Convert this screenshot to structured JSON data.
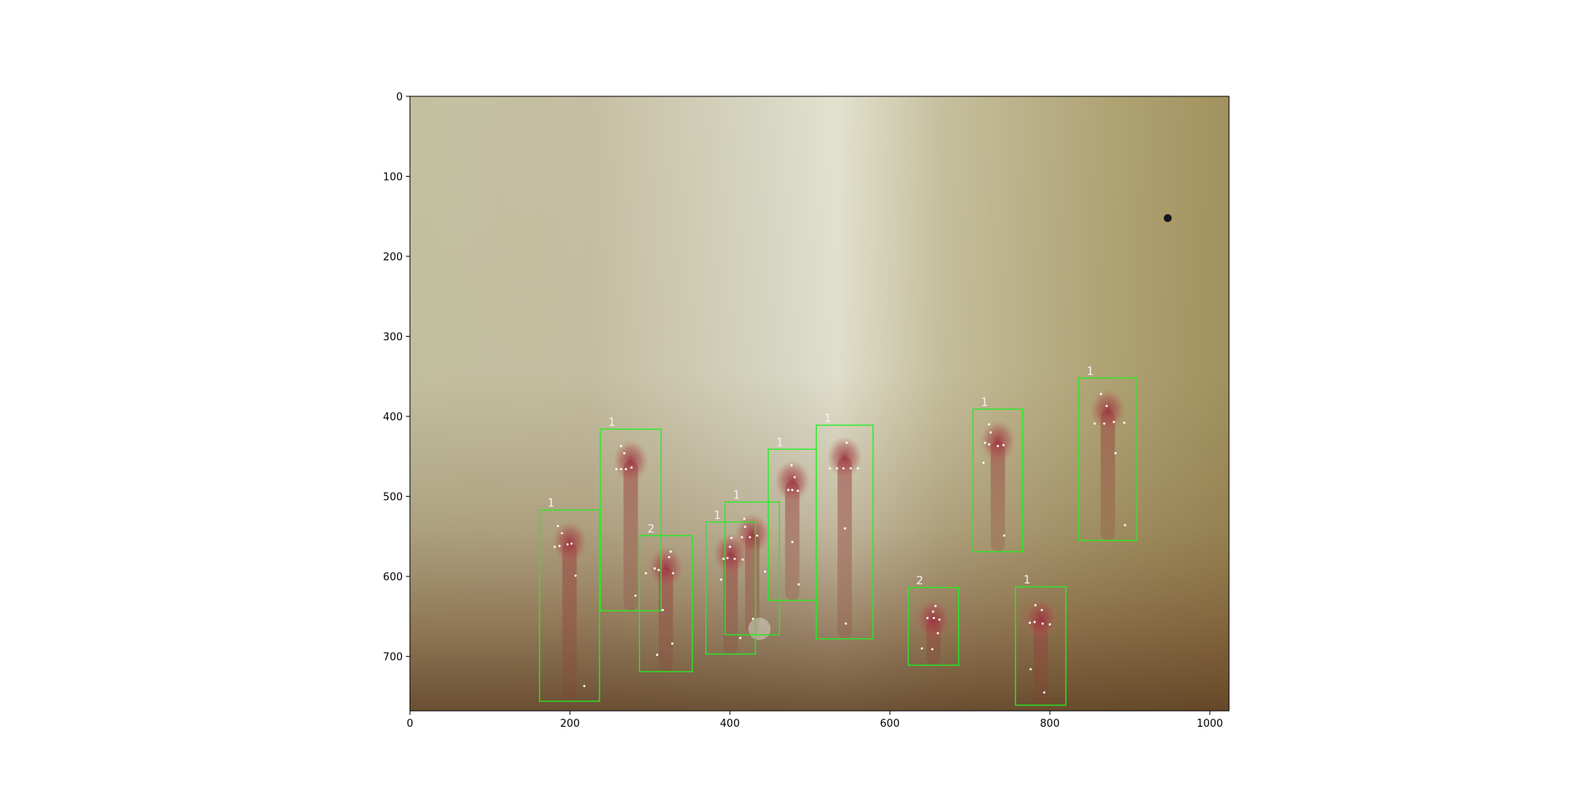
{
  "chart_data": {
    "type": "image-annotation",
    "title": "",
    "xlabel": "",
    "ylabel": "",
    "xlim": [
      0,
      1024
    ],
    "ylim": [
      768,
      0
    ],
    "x_ticks": [
      0,
      200,
      400,
      600,
      800,
      1000
    ],
    "y_ticks": [
      0,
      100,
      200,
      300,
      400,
      500,
      600,
      700
    ],
    "grid": false,
    "legend": "none",
    "colors": {
      "box": "#22ee22",
      "label": "#f4f4f4",
      "point": "#ffffff",
      "axis": "#000000"
    },
    "boxes": [
      {
        "label": "1",
        "x0": 162,
        "y0": 517,
        "x1": 237,
        "y1": 756
      },
      {
        "label": "1",
        "x0": 238,
        "y0": 416,
        "x1": 314,
        "y1": 643
      },
      {
        "label": "2",
        "x0": 287,
        "y0": 549,
        "x1": 353,
        "y1": 719
      },
      {
        "label": "1",
        "x0": 370,
        "y0": 532,
        "x1": 432,
        "y1": 697
      },
      {
        "label": "1",
        "x0": 394,
        "y0": 507,
        "x1": 462,
        "y1": 673
      },
      {
        "label": "1",
        "x0": 448,
        "y0": 441,
        "x1": 508,
        "y1": 630
      },
      {
        "label": "1",
        "x0": 508,
        "y0": 411,
        "x1": 579,
        "y1": 678
      },
      {
        "label": "2",
        "x0": 623,
        "y0": 614,
        "x1": 686,
        "y1": 711
      },
      {
        "label": "1",
        "x0": 704,
        "y0": 391,
        "x1": 766,
        "y1": 569
      },
      {
        "label": "1",
        "x0": 757,
        "y0": 613,
        "x1": 820,
        "y1": 761
      },
      {
        "label": "1",
        "x0": 836,
        "y0": 352,
        "x1": 909,
        "y1": 555
      }
    ],
    "points": [
      [
        185,
        537
      ],
      [
        190,
        546
      ],
      [
        181,
        563
      ],
      [
        187,
        562
      ],
      [
        197,
        560
      ],
      [
        202,
        559
      ],
      [
        207,
        599
      ],
      [
        218,
        737
      ],
      [
        258,
        466
      ],
      [
        264,
        466
      ],
      [
        270,
        466
      ],
      [
        277,
        464
      ],
      [
        264,
        437
      ],
      [
        268,
        446
      ],
      [
        282,
        624
      ],
      [
        316,
        642
      ],
      [
        295,
        596
      ],
      [
        306,
        590
      ],
      [
        311,
        592
      ],
      [
        324,
        576
      ],
      [
        326,
        569
      ],
      [
        329,
        596
      ],
      [
        328,
        684
      ],
      [
        309,
        698
      ],
      [
        392,
        578
      ],
      [
        397,
        577
      ],
      [
        400,
        563
      ],
      [
        406,
        578
      ],
      [
        416,
        579
      ],
      [
        389,
        604
      ],
      [
        429,
        653
      ],
      [
        413,
        677
      ],
      [
        402,
        552
      ],
      [
        415,
        551
      ],
      [
        419,
        538
      ],
      [
        425,
        551
      ],
      [
        434,
        549
      ],
      [
        418,
        528
      ],
      [
        444,
        594
      ],
      [
        477,
        461
      ],
      [
        481,
        476
      ],
      [
        473,
        492
      ],
      [
        478,
        492
      ],
      [
        485,
        493
      ],
      [
        478,
        557
      ],
      [
        486,
        610
      ],
      [
        525,
        465
      ],
      [
        534,
        465
      ],
      [
        542,
        465
      ],
      [
        551,
        465
      ],
      [
        546,
        433
      ],
      [
        560,
        465
      ],
      [
        544,
        540
      ],
      [
        545,
        659
      ],
      [
        657,
        637
      ],
      [
        654,
        644
      ],
      [
        647,
        652
      ],
      [
        655,
        652
      ],
      [
        662,
        654
      ],
      [
        660,
        671
      ],
      [
        640,
        690
      ],
      [
        653,
        691
      ],
      [
        724,
        410
      ],
      [
        726,
        420
      ],
      [
        719,
        433
      ],
      [
        724,
        435
      ],
      [
        735,
        437
      ],
      [
        742,
        436
      ],
      [
        717,
        458
      ],
      [
        743,
        549
      ],
      [
        782,
        636
      ],
      [
        790,
        642
      ],
      [
        775,
        658
      ],
      [
        781,
        657
      ],
      [
        791,
        659
      ],
      [
        800,
        660
      ],
      [
        776,
        716
      ],
      [
        793,
        745
      ],
      [
        864,
        372
      ],
      [
        871,
        387
      ],
      [
        856,
        409
      ],
      [
        868,
        409
      ],
      [
        880,
        407
      ],
      [
        893,
        408
      ],
      [
        882,
        446
      ],
      [
        894,
        536
      ]
    ],
    "tick_labels_x": [
      "0",
      "200",
      "400",
      "600",
      "800",
      "1000"
    ],
    "tick_labels_y": [
      "0",
      "100",
      "200",
      "300",
      "400",
      "500",
      "600",
      "700"
    ]
  }
}
